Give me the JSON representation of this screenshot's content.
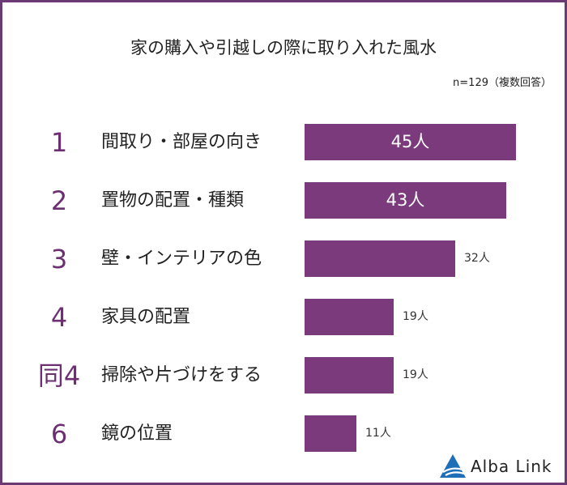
{
  "title": "家の購入や引越しの際に取り入れた風水",
  "note": "n=129（複数回答）",
  "colors": {
    "bar": "#7b3a7c",
    "rank": "#6b2f72",
    "frame": "#6b3a74",
    "logo": "#1e6fb8"
  },
  "chart_data": {
    "type": "bar",
    "orientation": "horizontal",
    "title": "家の購入や引越しの際に取り入れた風水",
    "ranks": [
      "1",
      "2",
      "3",
      "4",
      "同4",
      "6"
    ],
    "categories": [
      "間取り・部屋の向き",
      "置物の配置・種類",
      "壁・インテリアの色",
      "家具の配置",
      "掃除や片づけをする",
      "鏡の位置"
    ],
    "values": [
      45,
      43,
      32,
      19,
      19,
      11
    ],
    "value_labels": [
      "45人",
      "43人",
      "32人",
      "19人",
      "19人",
      "11人"
    ],
    "xlim": [
      0,
      45
    ]
  },
  "logo": {
    "text": "Alba Link",
    "icon": "alba-link-triangle-icon"
  }
}
